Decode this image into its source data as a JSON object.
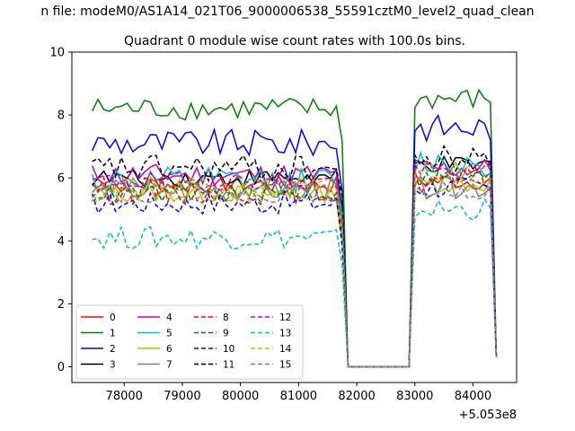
{
  "figure": {
    "suptitle": "n file: modeM0/AS1A14_021T06_9000006538_55591cztM0_level2_quad_clean",
    "offset_label": "+5.053e8"
  },
  "chart_data": {
    "type": "line",
    "title": "Quadrant 0 module wise count rates with 100.0s bins.",
    "xlabel": "",
    "ylabel": "",
    "x_offset": 505300000,
    "xlim": [
      77100,
      84750
    ],
    "ylim": [
      -0.5,
      10.0
    ],
    "xticks": [
      78000,
      79000,
      80000,
      81000,
      82000,
      83000,
      84000
    ],
    "xtick_labels": [
      "78000",
      "79000",
      "80000",
      "81000",
      "82000",
      "83000",
      "84000"
    ],
    "yticks": [
      0,
      2,
      4,
      6,
      8,
      10
    ],
    "ytick_labels": [
      "0",
      "2",
      "4",
      "6",
      "8",
      "10"
    ],
    "grid": false,
    "legend_placement": "lower left",
    "legend_columns": 4,
    "segments": [
      {
        "x0": 77450,
        "x1": 81850,
        "note": "first observing window"
      },
      {
        "x0": 81850,
        "x1": 82900,
        "note": "gap, rates at zero"
      },
      {
        "x0": 82900,
        "x1": 84400,
        "note": "second observing window"
      }
    ],
    "series": [
      {
        "name": "0",
        "color": "#ff0000",
        "dash": "solid",
        "level1": 5.8,
        "level2": 5.9
      },
      {
        "name": "1",
        "color": "#008000",
        "dash": "solid",
        "level1": 8.2,
        "level2": 8.5
      },
      {
        "name": "2",
        "color": "#0000ff",
        "dash": "solid",
        "level1": 7.1,
        "level2": 7.6
      },
      {
        "name": "3",
        "color": "#000000",
        "dash": "solid",
        "level1": 6.0,
        "level2": 6.4
      },
      {
        "name": "4",
        "color": "#bf00bf",
        "dash": "solid",
        "level1": 6.1,
        "level2": 6.3
      },
      {
        "name": "5",
        "color": "#00bfbf",
        "dash": "solid",
        "level1": 5.9,
        "level2": 6.5
      },
      {
        "name": "6",
        "color": "#bfbf00",
        "dash": "solid",
        "level1": 5.5,
        "level2": 5.8
      },
      {
        "name": "7",
        "color": "#808080",
        "dash": "solid",
        "level1": 5.6,
        "level2": 5.7
      },
      {
        "name": "8",
        "color": "#ff0000",
        "dash": "dashed",
        "level1": 5.6,
        "level2": 5.9
      },
      {
        "name": "9",
        "color": "#008000",
        "dash": "dashed",
        "level1": 5.5,
        "level2": 6.0
      },
      {
        "name": "10",
        "color": "#0000ff",
        "dash": "dashed",
        "level1": 5.2,
        "level2": 5.7
      },
      {
        "name": "11",
        "color": "#000000",
        "dash": "dashed",
        "level1": 6.3,
        "level2": 6.6
      },
      {
        "name": "12",
        "color": "#bf00bf",
        "dash": "dashed",
        "level1": 5.9,
        "level2": 6.2
      },
      {
        "name": "13",
        "color": "#00bfbf",
        "dash": "dashed",
        "level1": 4.1,
        "level2": 5.0
      },
      {
        "name": "14",
        "color": "#bfbf00",
        "dash": "dashed",
        "level1": 5.6,
        "level2": 6.2
      },
      {
        "name": "15",
        "color": "#808080",
        "dash": "dashed",
        "level1": 5.5,
        "level2": 5.6
      }
    ]
  }
}
